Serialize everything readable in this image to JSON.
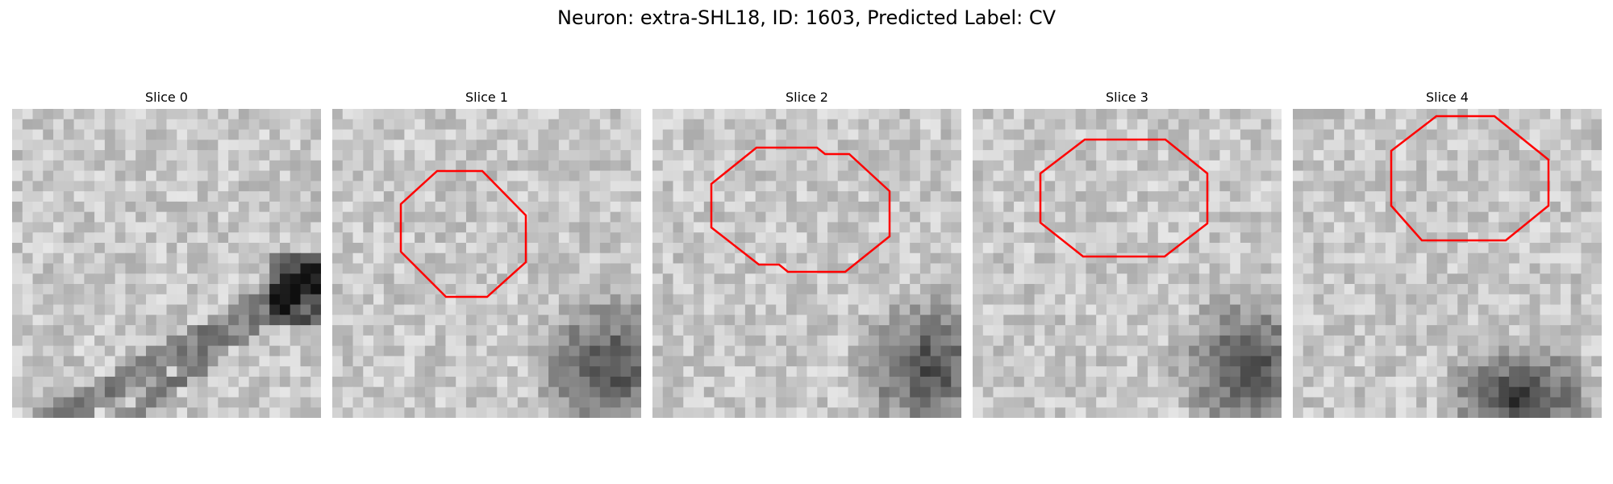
{
  "figure": {
    "title": "Neuron: extra-SHL18, ID: 1603, Predicted Label: CV"
  },
  "slices": [
    {
      "title": "Slice 0",
      "has_contour": false,
      "dark_feature": "diagonal-band",
      "seed": 11
    },
    {
      "title": "Slice 1",
      "has_contour": true,
      "contour_color": "#ff0000",
      "dark_feature": "bottom-right-blob",
      "seed": 23
    },
    {
      "title": "Slice 2",
      "has_contour": true,
      "contour_color": "#ff0000",
      "dark_feature": "bottom-right-blob",
      "seed": 37
    },
    {
      "title": "Slice 3",
      "has_contour": true,
      "contour_color": "#ff0000",
      "dark_feature": "bottom-right-blob",
      "seed": 53
    },
    {
      "title": "Slice 4",
      "has_contour": true,
      "contour_color": "#ff0000",
      "dark_feature": "bottom-blob",
      "seed": 71
    }
  ]
}
